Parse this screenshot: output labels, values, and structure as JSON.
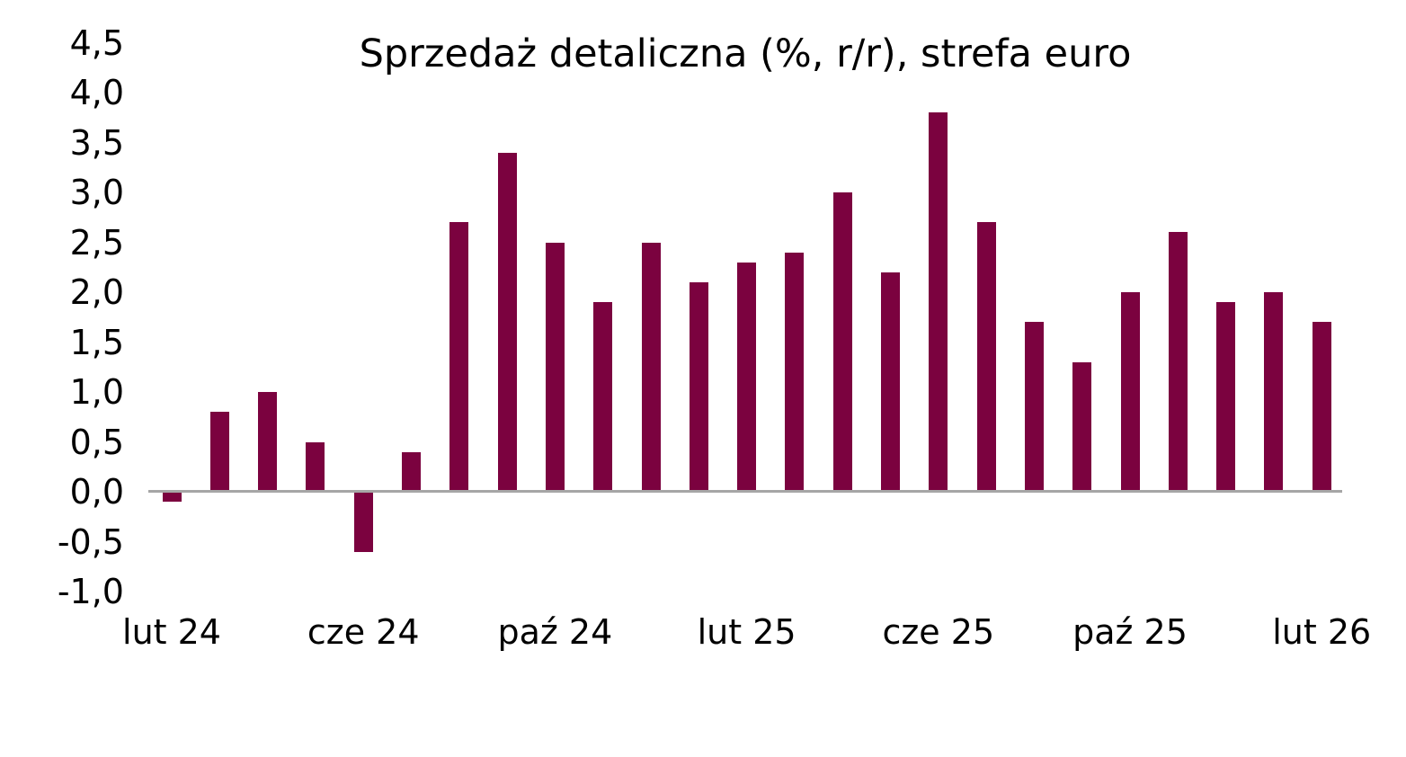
{
  "title": "Sprzedaż detaliczna (%, r/r), strefa euro",
  "colors": {
    "bar": "#7B023F",
    "axis_line": "#A6A6A6",
    "text": "#000000",
    "background": "#FFFFFF"
  },
  "chart_data": {
    "type": "bar",
    "title": "Sprzedaż detaliczna (%, r/r), strefa euro",
    "xlabel": "",
    "ylabel": "",
    "ylim": [
      -1.0,
      4.5
    ],
    "ytick_step": 0.5,
    "grid": false,
    "legend": null,
    "series_name": "Sprzedaż detaliczna r/r (%)",
    "values": [
      -0.1,
      0.8,
      1.0,
      0.5,
      -0.6,
      0.4,
      2.7,
      3.4,
      2.5,
      1.9,
      2.5,
      2.1,
      2.3,
      2.4,
      3.0,
      2.2,
      3.8,
      2.7,
      1.7,
      1.3,
      2.0,
      2.6,
      1.9,
      2.0,
      1.7
    ],
    "x_tick_labels": [
      {
        "index": 0,
        "label": "lut 24"
      },
      {
        "index": 4,
        "label": "cze 24"
      },
      {
        "index": 8,
        "label": "paź 24"
      },
      {
        "index": 12,
        "label": "lut 25"
      },
      {
        "index": 16,
        "label": "cze 25"
      },
      {
        "index": 20,
        "label": "paź 25"
      },
      {
        "index": 24,
        "label": "lut 26"
      }
    ],
    "y_ticks": [
      {
        "value": 4.5,
        "label": "4,5"
      },
      {
        "value": 4.0,
        "label": "4,0"
      },
      {
        "value": 3.5,
        "label": "3,5"
      },
      {
        "value": 3.0,
        "label": "3,0"
      },
      {
        "value": 2.5,
        "label": "2,5"
      },
      {
        "value": 2.0,
        "label": "2,0"
      },
      {
        "value": 1.5,
        "label": "1,5"
      },
      {
        "value": 1.0,
        "label": "1,0"
      },
      {
        "value": 0.5,
        "label": "0,5"
      },
      {
        "value": 0.0,
        "label": "0,0"
      },
      {
        "value": -0.5,
        "label": "-0,5"
      },
      {
        "value": -1.0,
        "label": "-1,0"
      }
    ]
  }
}
